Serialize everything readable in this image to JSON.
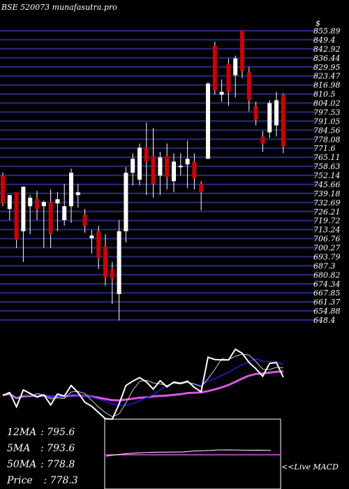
{
  "header": {
    "title": "BSE 520073 munafasutra.pro"
  },
  "colors": {
    "background": "#000000",
    "grid": "#28287a",
    "up_candle": "#ffffff",
    "down_candle": "#cc0000",
    "wick": "#ffffff",
    "price_line": "#ffffff",
    "short_ma": "#cccccc",
    "mid_ma": "#1f1fd6",
    "long_ma": "#dd55dd",
    "macd_signal": "#dd55dd",
    "macd_line": "#ffffff"
  },
  "chart_data": {
    "type": "candlestick",
    "title": "BSE 520073 munafasutra.pro",
    "currency_symbol": "$",
    "y_tick_labels": [
      "855.89",
      "849.4",
      "842.92",
      "836.44",
      "829.95",
      "823.47",
      "816.98",
      "810.5",
      "804.02",
      "797.53",
      "791.05",
      "784.56",
      "778.08",
      "771.6",
      "765.11",
      "758.63",
      "752.14",
      "745.66",
      "739.18",
      "732.69",
      "726.21",
      "719.72",
      "713.24",
      "706.76",
      "700.27",
      "693.79",
      "687.3",
      "680.82",
      "674.34",
      "667.85",
      "661.37",
      "654.88",
      "648.4"
    ],
    "ylim": [
      648.4,
      855.89
    ],
    "grid": true,
    "candles": [
      {
        "o": 752,
        "h": 754,
        "c": 732,
        "l": 730,
        "dir": "down"
      },
      {
        "o": 728,
        "h": 738,
        "c": 738,
        "l": 720,
        "dir": "up"
      },
      {
        "o": 740,
        "h": 740,
        "c": 706,
        "l": 700,
        "dir": "down"
      },
      {
        "o": 712,
        "h": 744,
        "c": 744,
        "l": 690,
        "dir": "up"
      },
      {
        "o": 730,
        "h": 738,
        "c": 736,
        "l": 710,
        "dir": "up"
      },
      {
        "o": 735,
        "h": 741,
        "c": 728,
        "l": 720,
        "dir": "down"
      },
      {
        "o": 730,
        "h": 734,
        "c": 733,
        "l": 700,
        "dir": "up"
      },
      {
        "o": 733,
        "h": 742,
        "c": 710,
        "l": 700,
        "dir": "down"
      },
      {
        "o": 732,
        "h": 740,
        "c": 735,
        "l": 712,
        "dir": "up"
      },
      {
        "o": 720,
        "h": 746,
        "c": 730,
        "l": 716,
        "dir": "up"
      },
      {
        "o": 730,
        "h": 757,
        "c": 754,
        "l": 718,
        "dir": "up"
      },
      {
        "o": 740,
        "h": 746,
        "c": 738,
        "l": 729,
        "dir": "up"
      },
      {
        "o": 724,
        "h": 728,
        "c": 716,
        "l": 711,
        "dir": "down"
      },
      {
        "o": 709,
        "h": 713,
        "c": 707,
        "l": 696,
        "dir": "up"
      },
      {
        "o": 712,
        "h": 716,
        "c": 693,
        "l": 685,
        "dir": "down"
      },
      {
        "o": 701,
        "h": 710,
        "c": 679,
        "l": 673,
        "dir": "down"
      },
      {
        "o": 685,
        "h": 690,
        "c": 678,
        "l": 660,
        "dir": "down"
      },
      {
        "o": 667,
        "h": 720,
        "c": 712,
        "l": 648,
        "dir": "up"
      },
      {
        "o": 712,
        "h": 758,
        "c": 754,
        "l": 704,
        "dir": "up"
      },
      {
        "o": 754,
        "h": 768,
        "c": 764,
        "l": 745,
        "dir": "up"
      },
      {
        "o": 749,
        "h": 775,
        "c": 772,
        "l": 745,
        "dir": "up"
      },
      {
        "o": 772,
        "h": 790,
        "c": 762,
        "l": 738,
        "dir": "down"
      },
      {
        "o": 766,
        "h": 786,
        "c": 746,
        "l": 736,
        "dir": "down"
      },
      {
        "o": 752,
        "h": 769,
        "c": 765,
        "l": 738,
        "dir": "up"
      },
      {
        "o": 766,
        "h": 775,
        "c": 751,
        "l": 742,
        "dir": "down"
      },
      {
        "o": 748,
        "h": 768,
        "c": 762,
        "l": 740,
        "dir": "up"
      },
      {
        "o": 758,
        "h": 768,
        "c": 759,
        "l": 752,
        "dir": "up"
      },
      {
        "o": 760,
        "h": 777,
        "c": 764,
        "l": 743,
        "dir": "up"
      },
      {
        "o": 762,
        "h": 768,
        "c": 750,
        "l": 742,
        "dir": "down"
      },
      {
        "o": 746,
        "h": 748,
        "c": 740,
        "l": 727,
        "dir": "down"
      },
      {
        "o": 764,
        "h": 819,
        "c": 818,
        "l": 764,
        "dir": "up"
      },
      {
        "o": 845,
        "h": 848,
        "c": 813,
        "l": 810,
        "dir": "down"
      },
      {
        "o": 810,
        "h": 821,
        "c": 812,
        "l": 805,
        "dir": "up"
      },
      {
        "o": 832,
        "h": 836,
        "c": 812,
        "l": 802,
        "dir": "down"
      },
      {
        "o": 824,
        "h": 838,
        "c": 836,
        "l": 808,
        "dir": "up"
      },
      {
        "o": 856,
        "h": 856,
        "c": 827,
        "l": 822,
        "dir": "down"
      },
      {
        "o": 826,
        "h": 830,
        "c": 806,
        "l": 798,
        "dir": "down"
      },
      {
        "o": 802,
        "h": 805,
        "c": 792,
        "l": 788,
        "dir": "down"
      },
      {
        "o": 780,
        "h": 784,
        "c": 775,
        "l": 769,
        "dir": "down"
      },
      {
        "o": 783,
        "h": 806,
        "c": 804,
        "l": 779,
        "dir": "up"
      },
      {
        "o": 788,
        "h": 812,
        "c": 806,
        "l": 780,
        "dir": "up"
      },
      {
        "o": 810,
        "h": 811,
        "c": 773,
        "l": 768,
        "dir": "down"
      }
    ],
    "indicators": {
      "12MA": 795.6,
      "5MA": 793.6,
      "50MA": 778.8,
      "Price": 778.3
    },
    "macd_label": "<<Live MACD"
  },
  "ma_labels": [
    {
      "name": "12MA",
      "sep": ": ",
      "value": "795.6"
    },
    {
      "name": "5MA",
      "sep": ": ",
      "value": "793.6"
    },
    {
      "name": "50MA",
      "sep": ": ",
      "value": "778.8"
    },
    {
      "name": "Price",
      "sep": "  : ",
      "value": "778.3"
    }
  ]
}
